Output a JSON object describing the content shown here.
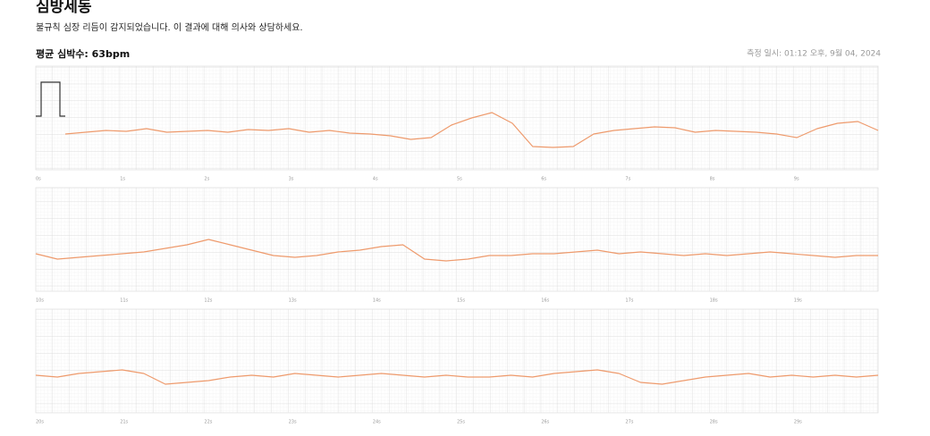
{
  "header": {
    "title": "심방세동",
    "subtitle": "불규칙 심장 리듬이 감지되었습니다. 이 결과에 대해 의사와 상담하세요.",
    "average_heart_rate": "평균 심박수: 63bpm",
    "measured_at": "측정 일시: 01:12 오후, 9월 04, 2024"
  },
  "strips": [
    {
      "time_labels": [
        "0s",
        "1s",
        "2s",
        "3s",
        "4s",
        "5s",
        "6s",
        "7s",
        "8s",
        "9s"
      ],
      "trace": [
        0,
        0.1,
        0.2,
        0.15,
        0.3,
        0.1,
        0.15,
        0.2,
        0.1,
        0.25,
        0.2,
        0.3,
        0.1,
        0.2,
        0.05,
        0,
        -0.1,
        -0.3,
        -0.2,
        0.5,
        0.9,
        1.2,
        0.6,
        -0.7,
        -0.75,
        -0.7,
        0.0,
        0.2,
        0.3,
        0.4,
        0.35,
        0.1,
        0.2,
        0.15,
        0.1,
        0.0,
        -0.2,
        0.3,
        0.6,
        0.7,
        0.2
      ]
    },
    {
      "time_labels": [
        "10s",
        "11s",
        "12s",
        "13s",
        "14s",
        "15s",
        "16s",
        "17s",
        "18s",
        "19s"
      ],
      "trace": [
        0.1,
        -0.2,
        -0.1,
        0,
        0.1,
        0.2,
        0.4,
        0.6,
        0.9,
        0.6,
        0.3,
        0.0,
        -0.1,
        0.0,
        0.2,
        0.3,
        0.5,
        0.6,
        -0.2,
        -0.3,
        -0.2,
        0.0,
        0.0,
        0.1,
        0.1,
        0.2,
        0.3,
        0.1,
        0.2,
        0.1,
        0.0,
        0.1,
        0.0,
        0.1,
        0.2,
        0.1,
        0.0,
        -0.1,
        0.0,
        0.0
      ]
    },
    {
      "time_labels": [
        "20s",
        "21s",
        "22s",
        "23s",
        "24s",
        "25s",
        "26s",
        "27s",
        "28s",
        "29s"
      ],
      "trace": [
        0.1,
        0.0,
        0.2,
        0.3,
        0.4,
        0.2,
        -0.4,
        -0.3,
        -0.2,
        0.0,
        0.1,
        0.0,
        0.2,
        0.1,
        0.0,
        0.1,
        0.2,
        0.1,
        0.0,
        0.1,
        0.0,
        0.0,
        0.1,
        0.0,
        0.2,
        0.3,
        0.4,
        0.2,
        -0.3,
        -0.4,
        -0.2,
        0.0,
        0.1,
        0.2,
        0.0,
        0.1,
        0.0,
        0.1,
        0.0,
        0.1
      ]
    }
  ]
}
